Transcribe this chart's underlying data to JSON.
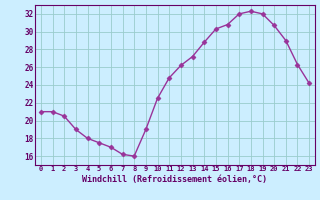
{
  "x": [
    0,
    1,
    2,
    3,
    4,
    5,
    6,
    7,
    8,
    9,
    10,
    11,
    12,
    13,
    14,
    15,
    16,
    17,
    18,
    19,
    20,
    21,
    22,
    23
  ],
  "y": [
    21,
    21,
    20.5,
    19,
    18,
    17.5,
    17,
    16.2,
    16,
    19,
    22.5,
    24.8,
    26.2,
    27.2,
    28.8,
    30.3,
    30.8,
    32,
    32.3,
    32,
    30.7,
    29,
    26.3,
    24.2
  ],
  "line_color": "#993399",
  "marker_color": "#993399",
  "bg_color": "#cceeff",
  "grid_color": "#99cccc",
  "text_color": "#660066",
  "xlabel": "Windchill (Refroidissement éolien,°C)",
  "ylim": [
    15,
    33
  ],
  "xlim": [
    -0.5,
    23.5
  ],
  "yticks": [
    16,
    18,
    20,
    22,
    24,
    26,
    28,
    30,
    32
  ],
  "xticks": [
    0,
    1,
    2,
    3,
    4,
    5,
    6,
    7,
    8,
    9,
    10,
    11,
    12,
    13,
    14,
    15,
    16,
    17,
    18,
    19,
    20,
    21,
    22,
    23
  ]
}
